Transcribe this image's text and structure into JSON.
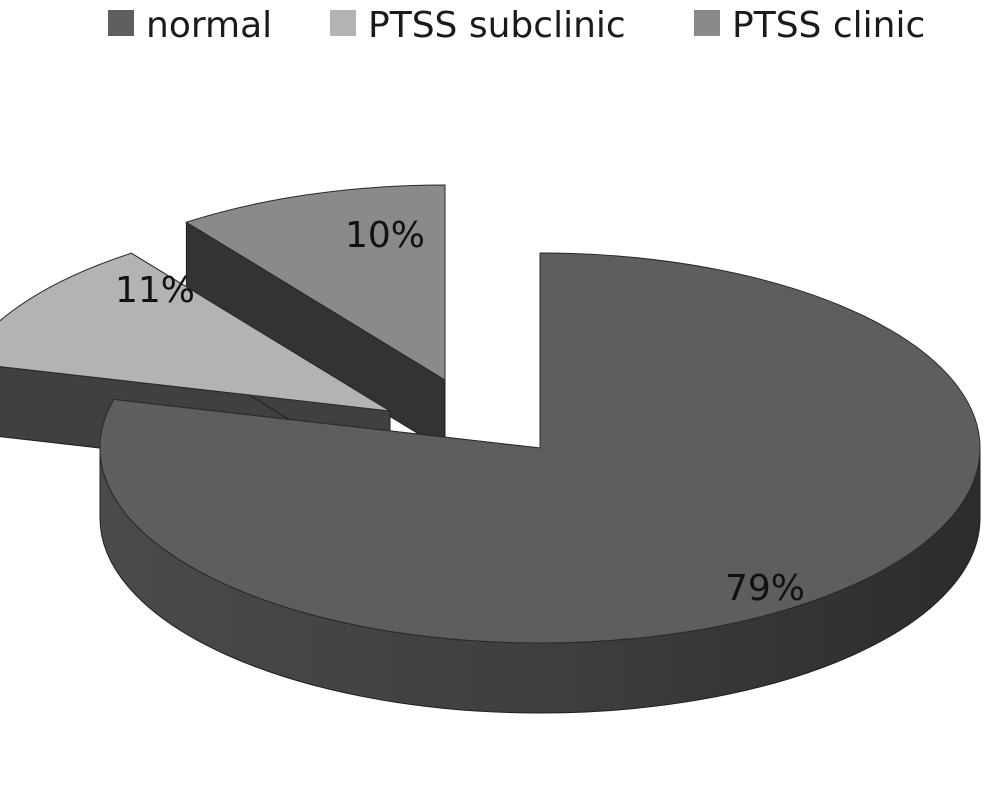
{
  "chart_data": {
    "type": "pie",
    "title": "",
    "legend_position": "top",
    "slices": [
      {
        "name": "normal",
        "value": 79,
        "label": "79%",
        "color": "#5e5e5e",
        "side_color": "#3a3a3a"
      },
      {
        "name": "PTSS subclinic",
        "value": 11,
        "label": "11%",
        "color": "#b3b3b3",
        "side_color": "#404040"
      },
      {
        "name": "PTSS clinic",
        "value": 10,
        "label": "10%",
        "color": "#8a8a8a",
        "side_color": "#333333"
      }
    ]
  }
}
